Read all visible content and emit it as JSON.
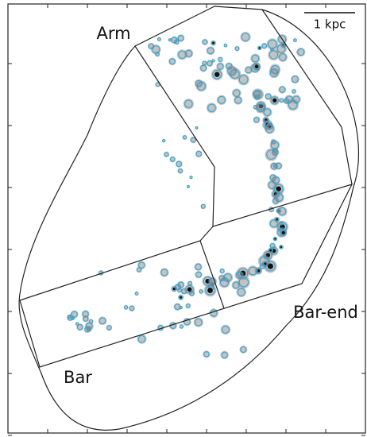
{
  "regions": {
    "arm": "Arm",
    "bar": "Bar",
    "bar_end": "Bar-end"
  },
  "scale_bar": {
    "label": "1 kpc"
  }
}
